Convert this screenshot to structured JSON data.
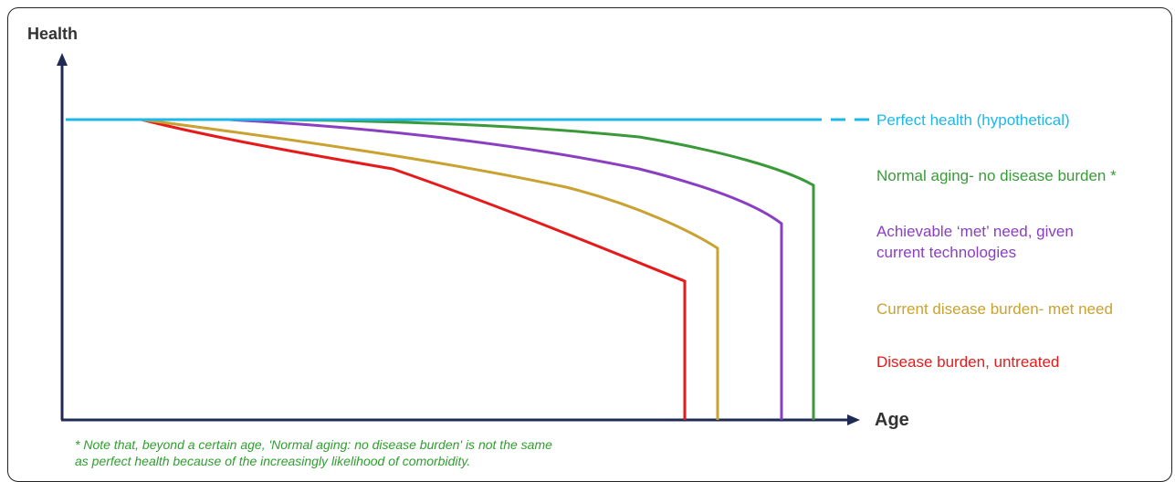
{
  "axes": {
    "y_label": "Health",
    "x_label": "Age",
    "axis_color": "#1f2a55"
  },
  "curves": [
    {
      "id": "perfect",
      "label": "Perfect health (hypothetical)",
      "color": "#1bb8e8"
    },
    {
      "id": "normal",
      "label": "Normal aging- no disease burden *",
      "color": "#3a9a3a"
    },
    {
      "id": "achievable",
      "label_lines": [
        "Achievable ‘met’ need, given",
        "current technologies"
      ],
      "color": "#8a3fc2"
    },
    {
      "id": "current",
      "label": "Current disease burden- met need",
      "color": "#c9a232"
    },
    {
      "id": "untreated",
      "label": "Disease burden, untreated",
      "color": "#e61a1a"
    }
  ],
  "note": {
    "lines": [
      "* Note that, beyond a certain age, 'Normal aging: no disease burden' is not the same",
      "as perfect health because of the increasingly likelihood of comorbidity."
    ],
    "color": "#2e9e2e"
  }
}
